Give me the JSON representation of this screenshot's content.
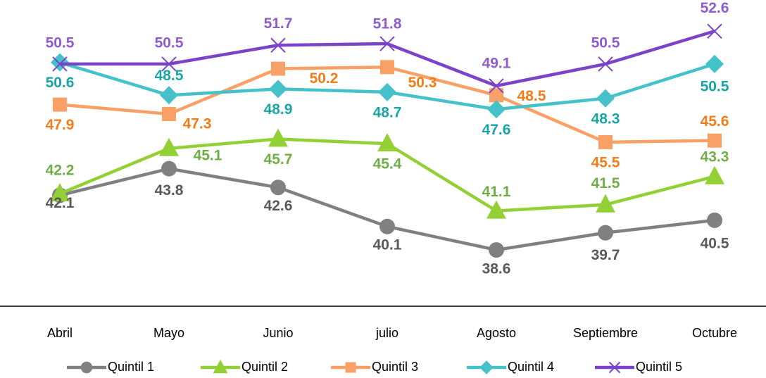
{
  "chart_data": {
    "type": "line",
    "categories": [
      "Abril",
      "Mayo",
      "Junio",
      "julio",
      "Agosto",
      "Septiembre",
      "Octubre"
    ],
    "series": [
      {
        "name": "Quintil 1",
        "color": "#808080",
        "label_color": "#595959",
        "marker": "circle",
        "values": [
          42.1,
          43.8,
          42.6,
          40.1,
          38.6,
          39.7,
          40.5
        ]
      },
      {
        "name": "Quintil 2",
        "color": "#92d036",
        "label_color": "#70ad47",
        "marker": "triangle",
        "values": [
          42.2,
          45.1,
          45.7,
          45.4,
          41.1,
          41.5,
          43.3
        ]
      },
      {
        "name": "Quintil 3",
        "color": "#f9a066",
        "label_color": "#f07d1a",
        "marker": "square",
        "values": [
          47.9,
          47.3,
          50.2,
          50.3,
          48.5,
          45.5,
          45.6
        ]
      },
      {
        "name": "Quintil 4",
        "color": "#45c1c9",
        "label_color": "#1aa5a5",
        "marker": "diamond",
        "values": [
          50.6,
          48.5,
          48.9,
          48.7,
          47.6,
          48.3,
          50.5
        ]
      },
      {
        "name": "Quintil 5",
        "color": "#7b44c8",
        "label_color": "#8e5ccc",
        "marker": "x",
        "values": [
          50.5,
          50.5,
          51.7,
          51.8,
          49.1,
          50.5,
          52.6
        ]
      }
    ],
    "ylim": [
      35,
      55
    ],
    "legend": "bottom"
  }
}
